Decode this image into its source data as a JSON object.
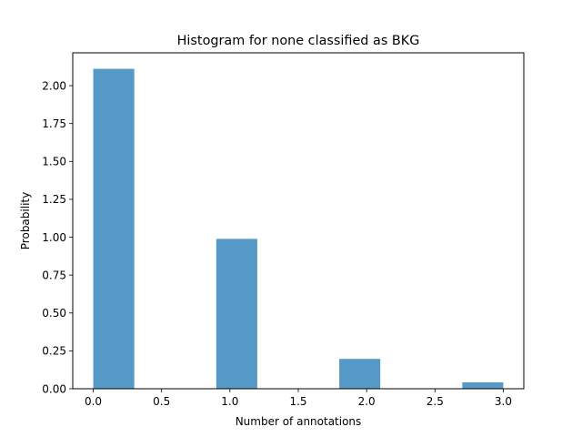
{
  "chart_data": {
    "type": "histogram",
    "title": "Histogram for none classified as BKG",
    "xlabel": "Number of annotations",
    "ylabel": "Probability",
    "xlim": [
      -0.15,
      3.15
    ],
    "ylim": [
      0,
      2.2167
    ],
    "xticks": [
      0.0,
      0.5,
      1.0,
      1.5,
      2.0,
      2.5,
      3.0
    ],
    "xtick_labels": [
      "0.0",
      "0.5",
      "1.0",
      "1.5",
      "2.0",
      "2.5",
      "3.0"
    ],
    "yticks": [
      0.0,
      0.25,
      0.5,
      0.75,
      1.0,
      1.25,
      1.5,
      1.75,
      2.0
    ],
    "ytick_labels": [
      "0.00",
      "0.25",
      "0.50",
      "0.75",
      "1.00",
      "1.25",
      "1.50",
      "1.75",
      "2.00"
    ],
    "bins": [
      {
        "x0": 0.0,
        "x1": 0.3,
        "value": 2.111
      },
      {
        "x0": 0.9,
        "x1": 1.2,
        "value": 0.989
      },
      {
        "x0": 1.8,
        "x1": 2.1,
        "value": 0.197
      },
      {
        "x0": 2.7,
        "x1": 3.0,
        "value": 0.042
      }
    ],
    "bar_color": "#5599c7",
    "grid": false,
    "legend": "none"
  }
}
